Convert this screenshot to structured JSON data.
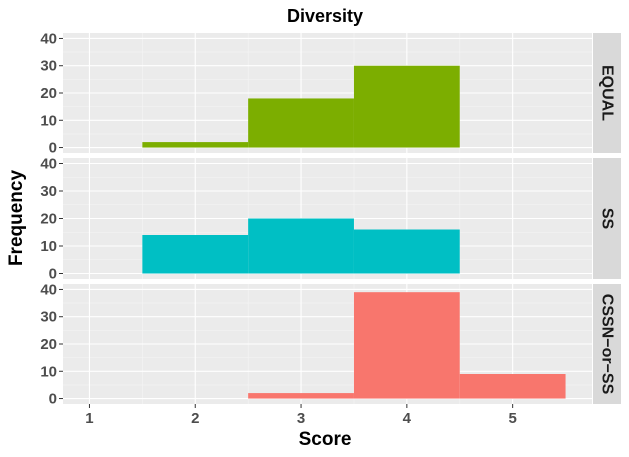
{
  "chart_data": {
    "type": "bar",
    "chart_kind": "faceted histogram",
    "title": "Diversity",
    "xlabel": "Score",
    "ylabel": "Frequency",
    "xlim": [
      0.75,
      5.75
    ],
    "ylim": [
      -2,
      42
    ],
    "x_ticks": [
      1,
      2,
      3,
      4,
      5
    ],
    "y_ticks": [
      0,
      10,
      20,
      30,
      40
    ],
    "bin_width": 1,
    "grid": true,
    "legend": "none",
    "facets": [
      {
        "name": "EQUAL",
        "color": "#7CAE00",
        "bins": [
          {
            "x": 2,
            "value": 2
          },
          {
            "x": 3,
            "value": 18
          },
          {
            "x": 4,
            "value": 30
          },
          {
            "x": 5,
            "value": 0
          }
        ]
      },
      {
        "name": "SS",
        "color": "#00BFC4",
        "bins": [
          {
            "x": 2,
            "value": 14
          },
          {
            "x": 3,
            "value": 20
          },
          {
            "x": 4,
            "value": 16
          }
        ]
      },
      {
        "name": "CSSN−or−SS",
        "color": "#F8766D",
        "bins": [
          {
            "x": 3,
            "value": 2
          },
          {
            "x": 4,
            "value": 39
          },
          {
            "x": 5,
            "value": 9
          }
        ]
      }
    ]
  }
}
